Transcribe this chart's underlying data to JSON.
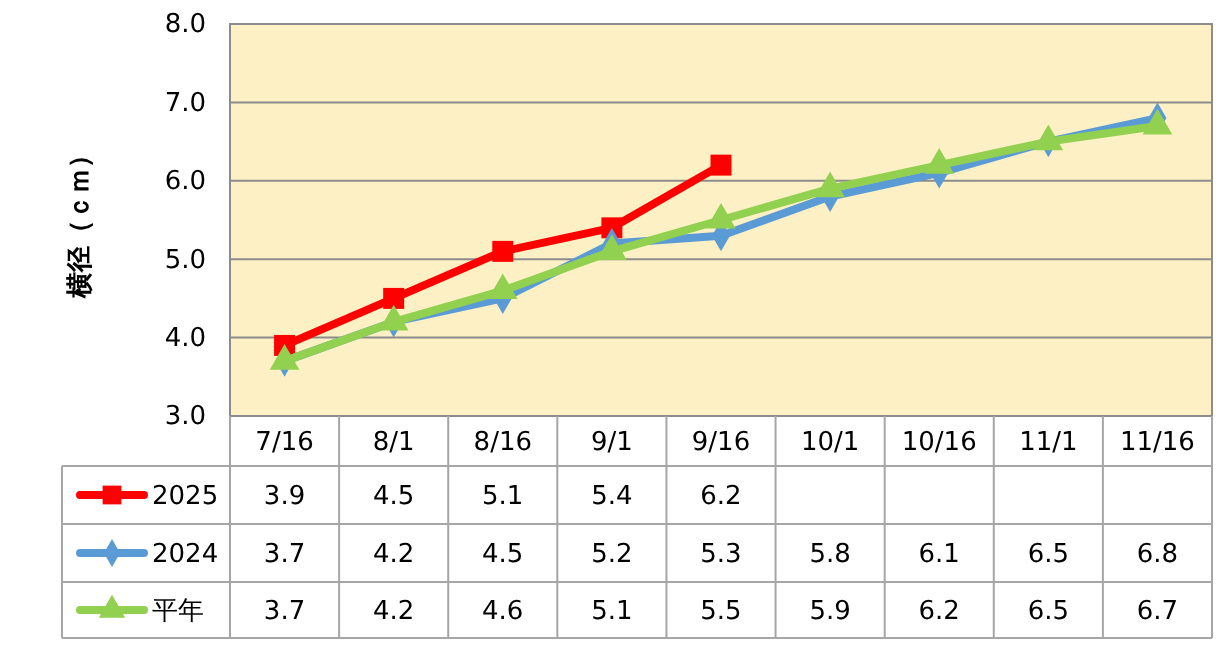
{
  "chart_data": {
    "type": "line",
    "ylabel": "横径（ｃｍ）",
    "categories": [
      "7/16",
      "8/1",
      "8/16",
      "9/1",
      "9/16",
      "10/1",
      "10/16",
      "11/1",
      "11/16"
    ],
    "series": [
      {
        "name": "2025",
        "color": "#ff0000",
        "marker": "square",
        "values": [
          3.9,
          4.5,
          5.1,
          5.4,
          6.2,
          null,
          null,
          null,
          null
        ]
      },
      {
        "name": "2024",
        "color": "#5b9bd5",
        "marker": "diamond",
        "values": [
          3.7,
          4.2,
          4.5,
          5.2,
          5.3,
          5.8,
          6.1,
          6.5,
          6.8
        ]
      },
      {
        "name": "平年",
        "color": "#92d050",
        "marker": "triangle",
        "values": [
          3.7,
          4.2,
          4.6,
          5.1,
          5.5,
          5.9,
          6.2,
          6.5,
          6.7
        ]
      }
    ],
    "ylim": [
      3,
      8
    ],
    "yticks": [
      {
        "value": 3,
        "label": "3.0"
      },
      {
        "value": 4,
        "label": "4.0"
      },
      {
        "value": 5,
        "label": "5.0"
      },
      {
        "value": 6,
        "label": "6.0"
      },
      {
        "value": 7,
        "label": "7.0"
      },
      {
        "value": 8,
        "label": "8.0"
      }
    ],
    "grid": "y",
    "legend": "bottom",
    "data_labels": true,
    "line_style": "solid"
  }
}
